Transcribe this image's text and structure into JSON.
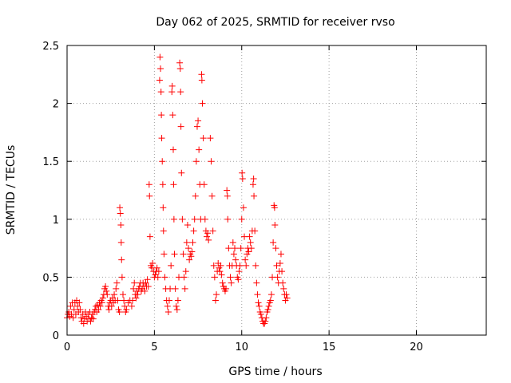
{
  "chart_data": {
    "type": "scatter",
    "title": "Day 062 of 2025, SRMTID for receiver rvso",
    "xlabel": "GPS time / hours",
    "ylabel": "SRMTID / TECUs",
    "xlim": [
      0,
      24
    ],
    "ylim": [
      0,
      2.5
    ],
    "grid": true,
    "marker": "+",
    "x_ticks": [
      0,
      5,
      10,
      15,
      20
    ],
    "x_tick_labels": [
      "0",
      "5",
      "10",
      "15",
      "20"
    ],
    "y_ticks": [
      0,
      0.5,
      1,
      1.5,
      2,
      2.5
    ],
    "y_tick_labels": [
      "0",
      "0.5",
      "1",
      "1.5",
      "2",
      "2.5"
    ],
    "series": [
      {
        "name": "SRMTID",
        "color": "#ff0000",
        "points": [
          [
            0.0,
            0.15
          ],
          [
            0.05,
            0.18
          ],
          [
            0.1,
            0.2
          ],
          [
            0.15,
            0.16
          ],
          [
            0.2,
            0.25
          ],
          [
            0.25,
            0.18
          ],
          [
            0.3,
            0.28
          ],
          [
            0.35,
            0.15
          ],
          [
            0.4,
            0.22
          ],
          [
            0.45,
            0.28
          ],
          [
            0.5,
            0.18
          ],
          [
            0.55,
            0.3
          ],
          [
            0.6,
            0.25
          ],
          [
            0.65,
            0.2
          ],
          [
            0.7,
            0.28
          ],
          [
            0.75,
            0.22
          ],
          [
            0.8,
            0.15
          ],
          [
            0.85,
            0.12
          ],
          [
            0.9,
            0.18
          ],
          [
            0.95,
            0.1
          ],
          [
            1.0,
            0.14
          ],
          [
            1.05,
            0.2
          ],
          [
            1.1,
            0.16
          ],
          [
            1.15,
            0.12
          ],
          [
            1.2,
            0.18
          ],
          [
            1.25,
            0.14
          ],
          [
            1.3,
            0.2
          ],
          [
            1.35,
            0.12
          ],
          [
            1.4,
            0.15
          ],
          [
            1.45,
            0.18
          ],
          [
            1.5,
            0.14
          ],
          [
            1.55,
            0.2
          ],
          [
            1.6,
            0.22
          ],
          [
            1.65,
            0.25
          ],
          [
            1.7,
            0.2
          ],
          [
            1.75,
            0.26
          ],
          [
            1.8,
            0.22
          ],
          [
            1.85,
            0.28
          ],
          [
            1.9,
            0.25
          ],
          [
            1.95,
            0.3
          ],
          [
            2.0,
            0.28
          ],
          [
            2.05,
            0.32
          ],
          [
            2.1,
            0.35
          ],
          [
            2.15,
            0.4
          ],
          [
            2.2,
            0.42
          ],
          [
            2.25,
            0.38
          ],
          [
            2.3,
            0.35
          ],
          [
            2.35,
            0.25
          ],
          [
            2.4,
            0.22
          ],
          [
            2.45,
            0.28
          ],
          [
            2.5,
            0.3
          ],
          [
            2.55,
            0.25
          ],
          [
            2.6,
            0.32
          ],
          [
            2.65,
            0.28
          ],
          [
            2.7,
            0.35
          ],
          [
            2.75,
            0.3
          ],
          [
            2.8,
            0.4
          ],
          [
            2.85,
            0.45
          ],
          [
            2.9,
            0.3
          ],
          [
            2.95,
            0.22
          ],
          [
            3.0,
            0.2
          ],
          [
            3.02,
            1.1
          ],
          [
            3.05,
            1.05
          ],
          [
            3.08,
            0.95
          ],
          [
            3.1,
            0.8
          ],
          [
            3.12,
            0.65
          ],
          [
            3.15,
            0.5
          ],
          [
            3.2,
            0.35
          ],
          [
            3.25,
            0.3
          ],
          [
            3.3,
            0.25
          ],
          [
            3.35,
            0.2
          ],
          [
            3.4,
            0.22
          ],
          [
            3.5,
            0.28
          ],
          [
            3.6,
            0.3
          ],
          [
            3.7,
            0.25
          ],
          [
            3.75,
            0.3
          ],
          [
            3.8,
            0.4
          ],
          [
            3.85,
            0.45
          ],
          [
            3.9,
            0.35
          ],
          [
            3.95,
            0.32
          ],
          [
            4.0,
            0.38
          ],
          [
            4.05,
            0.35
          ],
          [
            4.1,
            0.4
          ],
          [
            4.15,
            0.42
          ],
          [
            4.2,
            0.45
          ],
          [
            4.25,
            0.38
          ],
          [
            4.3,
            0.4
          ],
          [
            4.35,
            0.45
          ],
          [
            4.4,
            0.42
          ],
          [
            4.45,
            0.38
          ],
          [
            4.5,
            0.45
          ],
          [
            4.55,
            0.42
          ],
          [
            4.6,
            0.48
          ],
          [
            4.65,
            0.42
          ],
          [
            4.7,
            1.3
          ],
          [
            4.72,
            1.2
          ],
          [
            4.75,
            0.85
          ],
          [
            4.8,
            0.6
          ],
          [
            4.85,
            0.58
          ],
          [
            4.9,
            0.62
          ],
          [
            4.95,
            0.55
          ],
          [
            5.0,
            0.5
          ],
          [
            5.05,
            0.52
          ],
          [
            5.1,
            0.55
          ],
          [
            5.15,
            0.58
          ],
          [
            5.2,
            0.5
          ],
          [
            5.25,
            0.55
          ],
          [
            5.3,
            2.2
          ],
          [
            5.32,
            2.4
          ],
          [
            5.35,
            2.3
          ],
          [
            5.38,
            2.1
          ],
          [
            5.4,
            1.9
          ],
          [
            5.42,
            1.7
          ],
          [
            5.45,
            1.5
          ],
          [
            5.48,
            1.3
          ],
          [
            5.5,
            1.1
          ],
          [
            5.52,
            0.9
          ],
          [
            5.55,
            0.7
          ],
          [
            5.6,
            0.5
          ],
          [
            5.65,
            0.4
          ],
          [
            5.7,
            0.3
          ],
          [
            5.75,
            0.25
          ],
          [
            5.8,
            0.2
          ],
          [
            5.85,
            0.3
          ],
          [
            5.9,
            0.4
          ],
          [
            5.95,
            0.6
          ],
          [
            6.0,
            2.1
          ],
          [
            6.02,
            2.15
          ],
          [
            6.05,
            1.9
          ],
          [
            6.08,
            1.6
          ],
          [
            6.1,
            1.3
          ],
          [
            6.12,
            1.0
          ],
          [
            6.15,
            0.7
          ],
          [
            6.2,
            0.4
          ],
          [
            6.25,
            0.25
          ],
          [
            6.3,
            0.22
          ],
          [
            6.35,
            0.3
          ],
          [
            6.4,
            0.5
          ],
          [
            6.45,
            2.35
          ],
          [
            6.48,
            2.3
          ],
          [
            6.5,
            2.1
          ],
          [
            6.52,
            1.8
          ],
          [
            6.55,
            1.4
          ],
          [
            6.6,
            1.0
          ],
          [
            6.65,
            0.7
          ],
          [
            6.7,
            0.5
          ],
          [
            6.75,
            0.4
          ],
          [
            6.8,
            0.55
          ],
          [
            6.85,
            0.8
          ],
          [
            6.9,
            0.95
          ],
          [
            6.95,
            0.75
          ],
          [
            7.0,
            0.65
          ],
          [
            7.05,
            0.7
          ],
          [
            7.1,
            0.68
          ],
          [
            7.15,
            0.72
          ],
          [
            7.2,
            0.8
          ],
          [
            7.25,
            0.9
          ],
          [
            7.3,
            1.0
          ],
          [
            7.35,
            1.2
          ],
          [
            7.4,
            1.5
          ],
          [
            7.45,
            1.8
          ],
          [
            7.5,
            1.85
          ],
          [
            7.55,
            1.6
          ],
          [
            7.6,
            1.3
          ],
          [
            7.65,
            1.0
          ],
          [
            7.7,
            2.25
          ],
          [
            7.72,
            2.2
          ],
          [
            7.75,
            2.0
          ],
          [
            7.8,
            1.7
          ],
          [
            7.85,
            1.3
          ],
          [
            7.9,
            1.0
          ],
          [
            7.95,
            0.9
          ],
          [
            8.0,
            0.85
          ],
          [
            8.05,
            0.88
          ],
          [
            8.1,
            0.82
          ],
          [
            8.2,
            1.7
          ],
          [
            8.25,
            1.5
          ],
          [
            8.3,
            1.2
          ],
          [
            8.35,
            0.9
          ],
          [
            8.4,
            0.6
          ],
          [
            8.45,
            0.5
          ],
          [
            8.5,
            0.3
          ],
          [
            8.55,
            0.35
          ],
          [
            8.6,
            0.55
          ],
          [
            8.65,
            0.62
          ],
          [
            8.7,
            0.58
          ],
          [
            8.75,
            0.55
          ],
          [
            8.8,
            0.6
          ],
          [
            8.85,
            0.52
          ],
          [
            8.9,
            0.45
          ],
          [
            8.95,
            0.42
          ],
          [
            9.0,
            0.4
          ],
          [
            9.05,
            0.38
          ],
          [
            9.1,
            0.4
          ],
          [
            9.15,
            1.25
          ],
          [
            9.18,
            1.2
          ],
          [
            9.2,
            1.0
          ],
          [
            9.25,
            0.75
          ],
          [
            9.3,
            0.6
          ],
          [
            9.35,
            0.5
          ],
          [
            9.4,
            0.45
          ],
          [
            9.45,
            0.6
          ],
          [
            9.5,
            0.8
          ],
          [
            9.55,
            0.7
          ],
          [
            9.6,
            0.75
          ],
          [
            9.65,
            0.65
          ],
          [
            9.7,
            0.6
          ],
          [
            9.75,
            0.5
          ],
          [
            9.8,
            0.48
          ],
          [
            9.85,
            0.55
          ],
          [
            9.9,
            0.6
          ],
          [
            9.95,
            0.75
          ],
          [
            10.0,
            1.0
          ],
          [
            10.02,
            1.4
          ],
          [
            10.05,
            1.35
          ],
          [
            10.1,
            1.1
          ],
          [
            10.15,
            0.85
          ],
          [
            10.2,
            0.65
          ],
          [
            10.25,
            0.6
          ],
          [
            10.3,
            0.7
          ],
          [
            10.35,
            0.75
          ],
          [
            10.4,
            0.72
          ],
          [
            10.45,
            0.85
          ],
          [
            10.5,
            0.8
          ],
          [
            10.55,
            0.75
          ],
          [
            10.6,
            0.9
          ],
          [
            10.65,
            1.3
          ],
          [
            10.68,
            1.35
          ],
          [
            10.7,
            1.2
          ],
          [
            10.75,
            0.9
          ],
          [
            10.8,
            0.6
          ],
          [
            10.85,
            0.45
          ],
          [
            10.9,
            0.35
          ],
          [
            10.95,
            0.28
          ],
          [
            11.0,
            0.25
          ],
          [
            11.05,
            0.2
          ],
          [
            11.1,
            0.18
          ],
          [
            11.15,
            0.15
          ],
          [
            11.2,
            0.12
          ],
          [
            11.25,
            0.1
          ],
          [
            11.3,
            0.1
          ],
          [
            11.35,
            0.12
          ],
          [
            11.4,
            0.15
          ],
          [
            11.45,
            0.2
          ],
          [
            11.5,
            0.22
          ],
          [
            11.55,
            0.25
          ],
          [
            11.6,
            0.28
          ],
          [
            11.65,
            0.3
          ],
          [
            11.7,
            0.35
          ],
          [
            11.75,
            0.5
          ],
          [
            11.8,
            0.8
          ],
          [
            11.85,
            1.12
          ],
          [
            11.88,
            1.1
          ],
          [
            11.9,
            0.95
          ],
          [
            11.95,
            0.75
          ],
          [
            12.0,
            0.6
          ],
          [
            12.05,
            0.5
          ],
          [
            12.1,
            0.45
          ],
          [
            12.15,
            0.55
          ],
          [
            12.2,
            0.62
          ],
          [
            12.25,
            0.7
          ],
          [
            12.3,
            0.55
          ],
          [
            12.35,
            0.45
          ],
          [
            12.4,
            0.4
          ],
          [
            12.45,
            0.35
          ],
          [
            12.5,
            0.3
          ],
          [
            12.55,
            0.35
          ],
          [
            12.6,
            0.32
          ]
        ]
      }
    ]
  }
}
